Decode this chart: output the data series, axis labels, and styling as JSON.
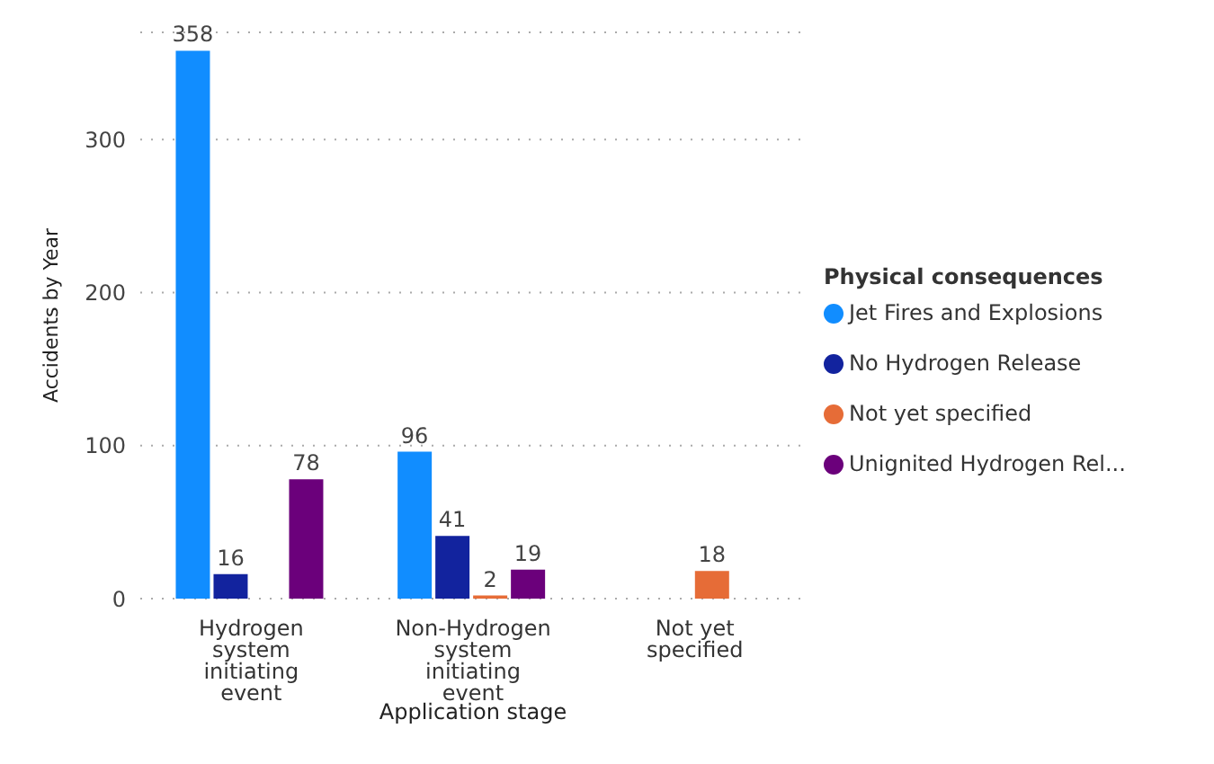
{
  "chart_data": {
    "type": "bar",
    "xlabel": "Application stage",
    "ylabel": "Accidents by Year",
    "legend_title": "Physical consequences",
    "categories": [
      "Hydrogen system initiating event",
      "Non-Hydrogen system initiating event",
      "Not yet specified"
    ],
    "series": [
      {
        "name": "Jet Fires and Explosions",
        "color": "#118dff",
        "values": [
          358,
          96,
          null
        ]
      },
      {
        "name": "No Hydrogen Release",
        "color": "#12239e",
        "values": [
          16,
          41,
          null
        ]
      },
      {
        "name": "Not yet specified",
        "color": "#e66c37",
        "values": [
          null,
          2,
          18
        ]
      },
      {
        "name": "Unignited Hydrogen Rel...",
        "color": "#6b007b",
        "values": [
          78,
          19,
          null
        ]
      }
    ],
    "ylim": [
      0,
      370
    ],
    "yticks": [
      0,
      100,
      200,
      300
    ],
    "grid": "y",
    "legend": "right",
    "data_labels": true
  }
}
